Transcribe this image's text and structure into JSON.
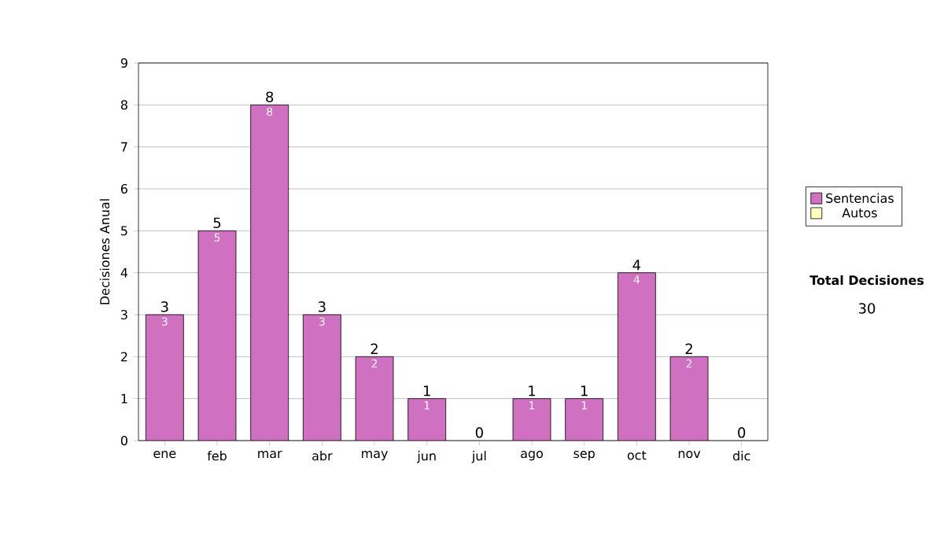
{
  "chart_data": {
    "type": "bar",
    "stacked": true,
    "ylabel": "Decisiones Anual",
    "categories": [
      "ene",
      "feb",
      "mar",
      "abr",
      "may",
      "jun",
      "jul",
      "ago",
      "sep",
      "oct",
      "nov",
      "dic"
    ],
    "series": [
      {
        "name": "Sentencias",
        "color": "#d070c0",
        "values": [
          3,
          5,
          8,
          3,
          2,
          1,
          0,
          1,
          1,
          4,
          2,
          0
        ],
        "value_labels": [
          "3",
          "5",
          "8",
          "3",
          "2",
          "1",
          null,
          "1",
          "1",
          "4",
          "2",
          null
        ]
      },
      {
        "name": "Autos",
        "color": "#ffffc0",
        "values": [
          0,
          0,
          0,
          0,
          0,
          0,
          0,
          0,
          0,
          0,
          0,
          0
        ]
      }
    ],
    "totals": [
      "3",
      "5",
      "8",
      "3",
      "2",
      "1",
      "0",
      "1",
      "1",
      "4",
      "2",
      "0"
    ],
    "ylim": [
      0,
      9
    ],
    "yticks": [
      0,
      1,
      2,
      3,
      4,
      5,
      6,
      7,
      8,
      9
    ],
    "grid": "y",
    "legend": "right",
    "annotations": [
      "Total Decisiones",
      "30"
    ]
  }
}
